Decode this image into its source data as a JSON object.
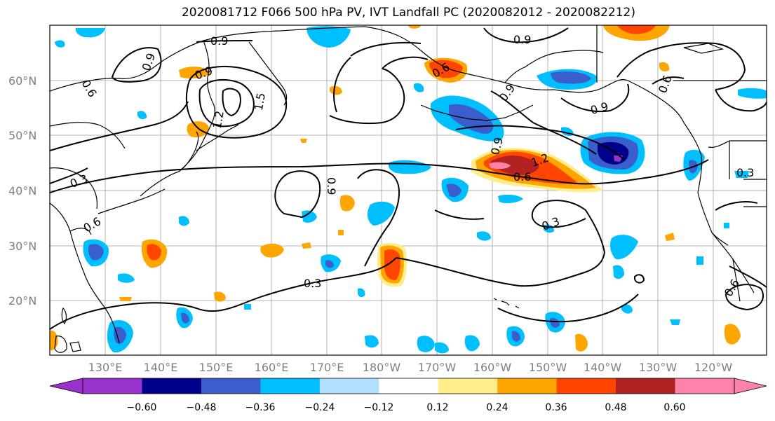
{
  "title": "2020081712 F066 500 hPa PV, IVT Landfall PC (2020082012 - 2020082212)",
  "map": {
    "lat_labels": [
      "60°N",
      "50°N",
      "40°N",
      "30°N",
      "20°N"
    ],
    "lon_labels": [
      "130°E",
      "140°E",
      "150°E",
      "160°E",
      "170°E",
      "180°W",
      "170°W",
      "160°W",
      "150°W",
      "140°W",
      "130°W",
      "120°W"
    ],
    "contour_labels": [
      {
        "text": "0.9",
        "id": "c-09-a"
      },
      {
        "text": "0.9",
        "id": "c-09-b"
      },
      {
        "text": "0.9",
        "id": "c-09-c"
      },
      {
        "text": "0.9",
        "id": "c-09-d"
      },
      {
        "text": "0.9",
        "id": "c-09-e"
      },
      {
        "text": "0.9",
        "id": "c-09-f"
      },
      {
        "text": "0.9",
        "id": "c-09-g"
      },
      {
        "text": "0.6",
        "id": "c-06-a"
      },
      {
        "text": "0.6",
        "id": "c-06-b"
      },
      {
        "text": "0.6",
        "id": "c-06-c"
      },
      {
        "text": "0.6",
        "id": "c-06-d"
      },
      {
        "text": "0.6",
        "id": "c-06-e"
      },
      {
        "text": "1.2",
        "id": "c-12-a"
      },
      {
        "text": "1.2",
        "id": "c-12-b"
      },
      {
        "text": "1.5",
        "id": "c-15-a"
      },
      {
        "text": "0.3",
        "id": "c-03-a"
      },
      {
        "text": "0.3",
        "id": "c-03-b"
      },
      {
        "text": "0.3",
        "id": "c-03-c"
      },
      {
        "text": "0.3",
        "id": "c-03-d"
      },
      {
        "text": "0.6",
        "id": "c-06-f"
      },
      {
        "text": "0.9",
        "id": "c-09-h"
      }
    ]
  },
  "colorbar": {
    "colors": [
      "#9932cc",
      "#00008b",
      "#3a5fcd",
      "#00bfff",
      "#b0e2ff",
      "#ffffff",
      "#ffec8b",
      "#ffa500",
      "#ff4500",
      "#b22222",
      "#ff82ab"
    ],
    "ticks": [
      "−0.60",
      "−0.48",
      "−0.36",
      "−0.24",
      "−0.12",
      "0.12",
      "0.24",
      "0.36",
      "0.48",
      "0.60"
    ]
  }
}
